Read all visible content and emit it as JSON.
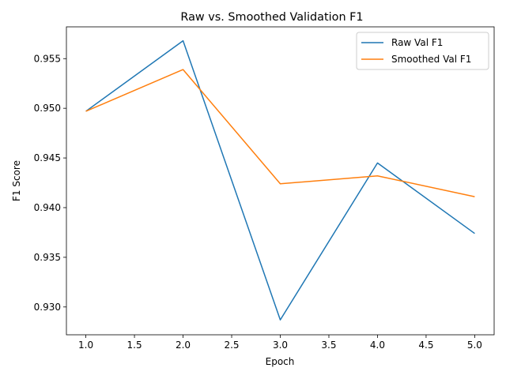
{
  "chart_data": {
    "type": "line",
    "title": "Raw vs. Smoothed Validation F1",
    "xlabel": "Epoch",
    "ylabel": "F1 Score",
    "x": [
      1,
      2,
      3,
      4,
      5
    ],
    "xlim": [
      0.8,
      5.2
    ],
    "ylim": [
      0.9272,
      0.9582
    ],
    "xticks": [
      "1.0",
      "1.5",
      "2.0",
      "2.5",
      "3.0",
      "3.5",
      "4.0",
      "4.5",
      "5.0"
    ],
    "yticks": [
      "0.930",
      "0.935",
      "0.940",
      "0.945",
      "0.950",
      "0.955"
    ],
    "grid": false,
    "legend_position": "upper right",
    "series": [
      {
        "name": "Raw Val F1",
        "color": "#1f77b4",
        "values": [
          0.9497,
          0.9568,
          0.9287,
          0.9445,
          0.9374
        ]
      },
      {
        "name": "Smoothed Val F1",
        "color": "#ff7f0e",
        "values": [
          0.9497,
          0.9539,
          0.9424,
          0.9432,
          0.9411
        ]
      }
    ]
  }
}
